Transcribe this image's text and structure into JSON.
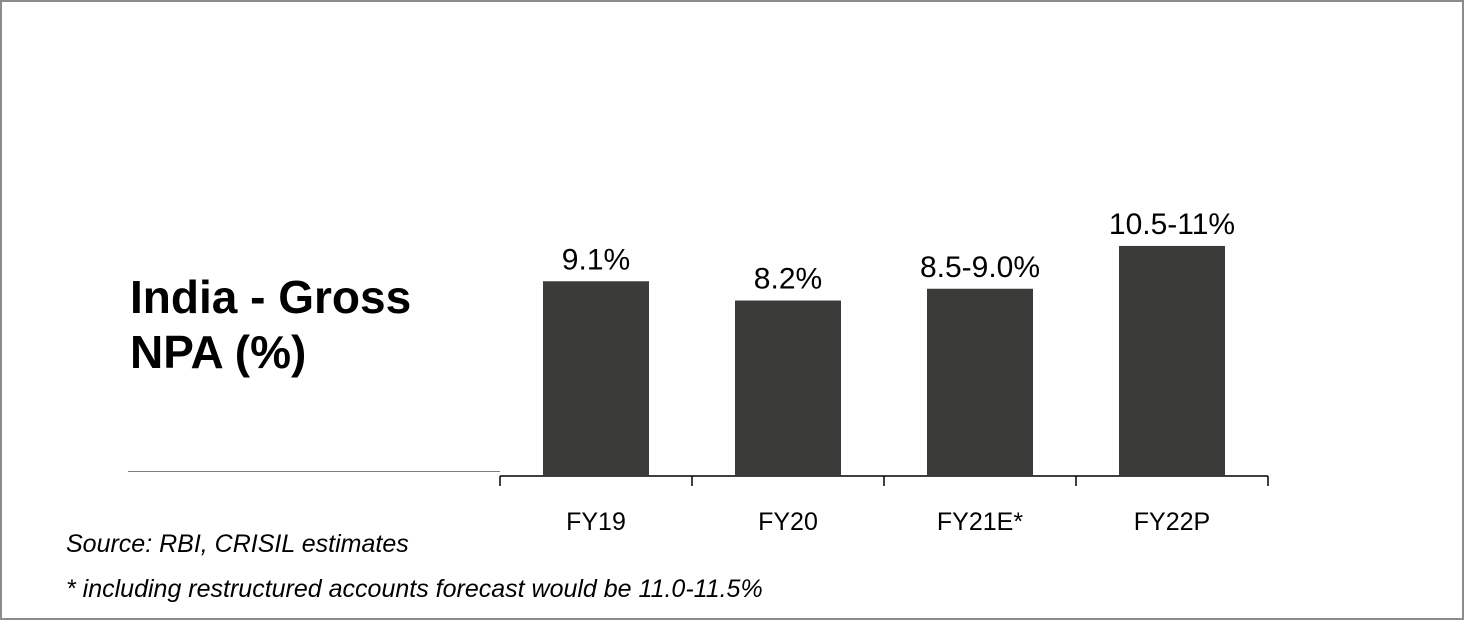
{
  "title": "India - Gross NPA (%)",
  "source_note": "Source: RBI, CRISIL estimates",
  "footnote": "* including restructured accounts forecast would be 11.0-11.5%",
  "colors": {
    "bar": "#3b3b39",
    "axis": "#000000",
    "frame": "#8c8c8c"
  },
  "chart_data": {
    "type": "bar",
    "categories": [
      "FY19",
      "FY20",
      "FY21E*",
      "FY22P"
    ],
    "values": [
      9.1,
      8.2,
      8.75,
      10.75
    ],
    "data_labels": [
      "9.1%",
      "8.2%",
      "8.5-9.0%",
      "10.5-11%"
    ],
    "title": "India - Gross NPA (%)",
    "xlabel": "",
    "ylabel": "",
    "ylim": [
      0,
      12
    ],
    "grid": false
  }
}
